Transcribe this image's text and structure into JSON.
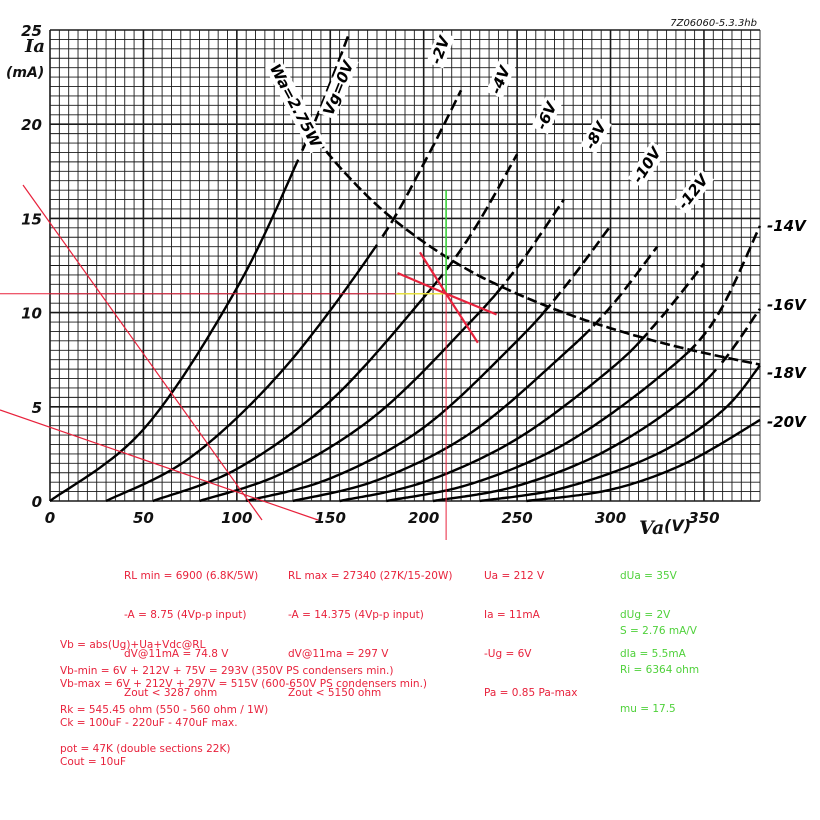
{
  "chart_data": {
    "type": "line",
    "figure_id": "7Z06060-5.3.3hb",
    "ylabel": "Ia",
    "yunit": "(mA)",
    "xlabel": "Va",
    "xunit": "(V)",
    "xlim": [
      0,
      380
    ],
    "ylim": [
      0,
      25
    ],
    "x_ticks": [
      "0",
      "50",
      "100",
      "150",
      "200",
      "250",
      "300",
      "350"
    ],
    "x_tick_values": [
      0,
      50,
      100,
      150,
      200,
      250,
      300,
      350
    ],
    "y_ticks": [
      "0",
      "5",
      "10",
      "15",
      "20",
      "25"
    ],
    "y_tick_values": [
      0,
      5,
      10,
      15,
      20,
      25
    ],
    "grid": true,
    "max_dissipation": {
      "label": "Wa=2.75W",
      "watts": 2.75,
      "x": [
        135,
        150,
        175,
        200,
        225,
        250,
        275,
        300,
        325,
        350,
        380
      ],
      "y": [
        20.4,
        18.3,
        15.7,
        13.75,
        12.2,
        11.0,
        10.0,
        9.17,
        8.46,
        7.86,
        7.24
      ]
    },
    "series": [
      {
        "name": "Vg=0V",
        "dashed_from": 18.3,
        "x": [
          0,
          50,
          100,
          135,
          150,
          160
        ],
        "y": [
          0,
          3.8,
          11.3,
          18.6,
          22.2,
          24.8
        ]
      },
      {
        "name": "-2V",
        "dashed_from": 13.75,
        "x": [
          30,
          75,
          125,
          175,
          200,
          220
        ],
        "y": [
          0,
          2.3,
          7.0,
          13.6,
          17.9,
          21.8
        ]
      },
      {
        "name": "-4V",
        "dashed_from": 12.2,
        "x": [
          55,
          100,
          150,
          200,
          225,
          250
        ],
        "y": [
          0,
          1.7,
          5.3,
          10.8,
          14.1,
          18.4
        ]
      },
      {
        "name": "-6V",
        "dashed_from": 11.0,
        "x": [
          80,
          125,
          175,
          225,
          250,
          275
        ],
        "y": [
          0,
          1.5,
          4.6,
          9.5,
          12.4,
          16.0
        ]
      },
      {
        "name": "-8V",
        "dashed_from": 10.0,
        "x": [
          105,
          150,
          200,
          250,
          275,
          300
        ],
        "y": [
          0,
          1.2,
          3.9,
          8.5,
          11.3,
          14.6
        ]
      },
      {
        "name": "-10V",
        "dashed_from": 9.17,
        "x": [
          130,
          175,
          225,
          275,
          300,
          325
        ],
        "y": [
          0,
          1.1,
          3.6,
          7.8,
          10.3,
          13.5
        ]
      },
      {
        "name": "-12V",
        "dashed_from": 8.46,
        "x": [
          155,
          200,
          250,
          300,
          325,
          350
        ],
        "y": [
          0,
          1.0,
          3.3,
          7.0,
          9.5,
          12.6
        ]
      },
      {
        "name": "-14V",
        "dashed_from": 7.86,
        "x": [
          180,
          225,
          275,
          325,
          355,
          380
        ],
        "y": [
          0,
          0.9,
          3.0,
          6.5,
          9.5,
          14.6
        ]
      },
      {
        "name": "-16V",
        "dashed_from": 7.24,
        "x": [
          205,
          250,
          300,
          350,
          380
        ],
        "y": [
          0,
          0.8,
          2.8,
          6.3,
          10.2
        ]
      },
      {
        "name": "-18V",
        "dashed_from": 99,
        "x": [
          230,
          275,
          325,
          360,
          380
        ],
        "y": [
          0,
          0.7,
          2.5,
          4.8,
          7.2
        ]
      },
      {
        "name": "-20V",
        "dashed_from": 99,
        "x": [
          255,
          300,
          340,
          380
        ],
        "y": [
          0,
          0.6,
          2.0,
          4.3
        ]
      }
    ],
    "annotations": {
      "operating_point": {
        "va": 212,
        "ia": 11
      },
      "crosshair": {
        "color": "#e8223c",
        "yellow": "#e8e040",
        "green": "#3ad13a"
      },
      "load_line_min": {
        "x": [
          0,
          150
        ],
        "y": [
          14.5,
          -7.2
        ]
      },
      "load_line_max": {
        "x": [
          -50,
          150
        ],
        "y": [
          5.7,
          -1.6
        ]
      },
      "green_segment": {
        "va": 212,
        "ia": [
          11,
          16.5
        ]
      },
      "delta_ticks": [
        {
          "x": [
            186,
            212
          ],
          "y": [
            12.1,
            11
          ]
        },
        {
          "x": [
            198,
            212
          ],
          "y": [
            13.2,
            11
          ]
        },
        {
          "x": [
            229,
            212
          ],
          "y": [
            8.4,
            11
          ]
        },
        {
          "x": [
            239,
            212
          ],
          "y": [
            9.9,
            11
          ]
        }
      ]
    }
  },
  "notes": {
    "rl_min": [
      "RL min = 6900 (6.8K/5W)",
      "-A = 8.75 (4Vp-p input)",
      "dV@11mA = 74.8 V",
      "Zout < 3287 ohm"
    ],
    "rl_max": [
      "RL max = 27340 (27K/15-20W)",
      "-A = 14.375 (4Vp-p input)",
      "dV@11ma = 297 V",
      "Zout < 5150 ohm"
    ],
    "operating": [
      "Ua = 212 V",
      "Ia = 11mA",
      "-Ug = 6V",
      "Pa = 0.85 Pa-max"
    ],
    "deltas": [
      "dUa = 35V",
      "dUg = 2V",
      "dIa = 5.5mA"
    ],
    "params": [
      "S = 2.76 mA/V",
      "Ri = 6364 ohm",
      "mu = 17.5"
    ],
    "formulas": [
      "Vb = abs(Ug)+Ua+Vdc@RL",
      "",
      "Vb-min = 6V + 212V + 75V = 293V (350V PS condensers min.)",
      "Vb-max = 6V + 212V + 297V = 515V (600-650V PS condensers min.)",
      "",
      "Rk = 545.45 ohm (550 - 560 ohm / 1W)",
      "Ck = 100uF - 220uF - 470uF max.",
      "",
      "pot = 47K (double sections 22K)",
      "Cout = 10uF"
    ]
  }
}
